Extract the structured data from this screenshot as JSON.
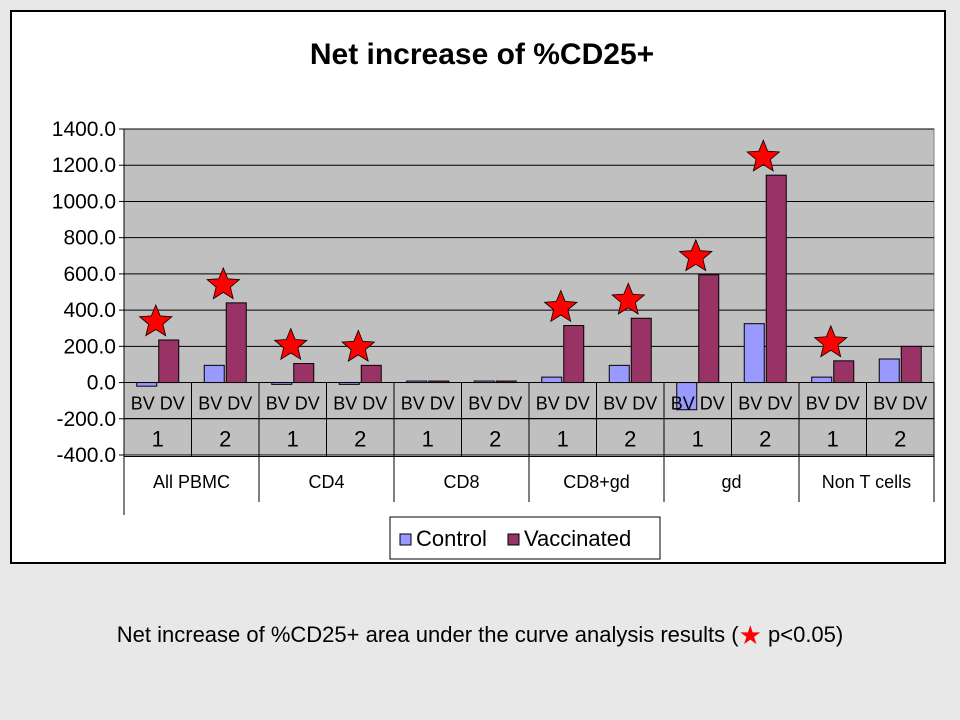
{
  "caption": {
    "before": "Net increase of %CD25+ area under the curve analysis results (",
    "after": " p<0.05)"
  },
  "chart_data": {
    "type": "bar",
    "title": "Net increase of %CD25+",
    "xlabel": "",
    "ylabel": "",
    "ylim": [
      -400,
      1400
    ],
    "yticks": [
      "1400.0",
      "1200.0",
      "1000.0",
      "800.0",
      "600.0",
      "400.0",
      "200.0",
      "0.0",
      "-200.0",
      "-400.0"
    ],
    "ytick_values": [
      1400,
      1200,
      1000,
      800,
      600,
      400,
      200,
      0,
      -200,
      -400
    ],
    "grid": true,
    "legend": "bottom-center",
    "sublabel": "BV DV",
    "groups": [
      {
        "name": "All PBMC",
        "subgroups": [
          "1",
          "2"
        ]
      },
      {
        "name": "CD4",
        "subgroups": [
          "1",
          "2"
        ]
      },
      {
        "name": "CD8",
        "subgroups": [
          "1",
          "2"
        ]
      },
      {
        "name": "CD8+gd",
        "subgroups": [
          "1",
          "2"
        ]
      },
      {
        "name": "gd",
        "subgroups": [
          "1",
          "2"
        ]
      },
      {
        "name": "Non T cells",
        "subgroups": [
          "1",
          "2"
        ]
      }
    ],
    "series": [
      {
        "name": "Control",
        "color": "#9999ff",
        "values": [
          -20,
          95,
          -10,
          -10,
          0,
          0,
          30,
          95,
          -150,
          325,
          30,
          130
        ]
      },
      {
        "name": "Vaccinated",
        "color": "#993366",
        "values": [
          235,
          440,
          105,
          95,
          5,
          5,
          315,
          355,
          595,
          1145,
          120,
          200
        ]
      }
    ],
    "significant": [
      true,
      true,
      true,
      true,
      false,
      false,
      true,
      true,
      true,
      true,
      true,
      false
    ],
    "colors": {
      "plot_bg": "#c0c0c0",
      "star": "#ff0000"
    }
  }
}
